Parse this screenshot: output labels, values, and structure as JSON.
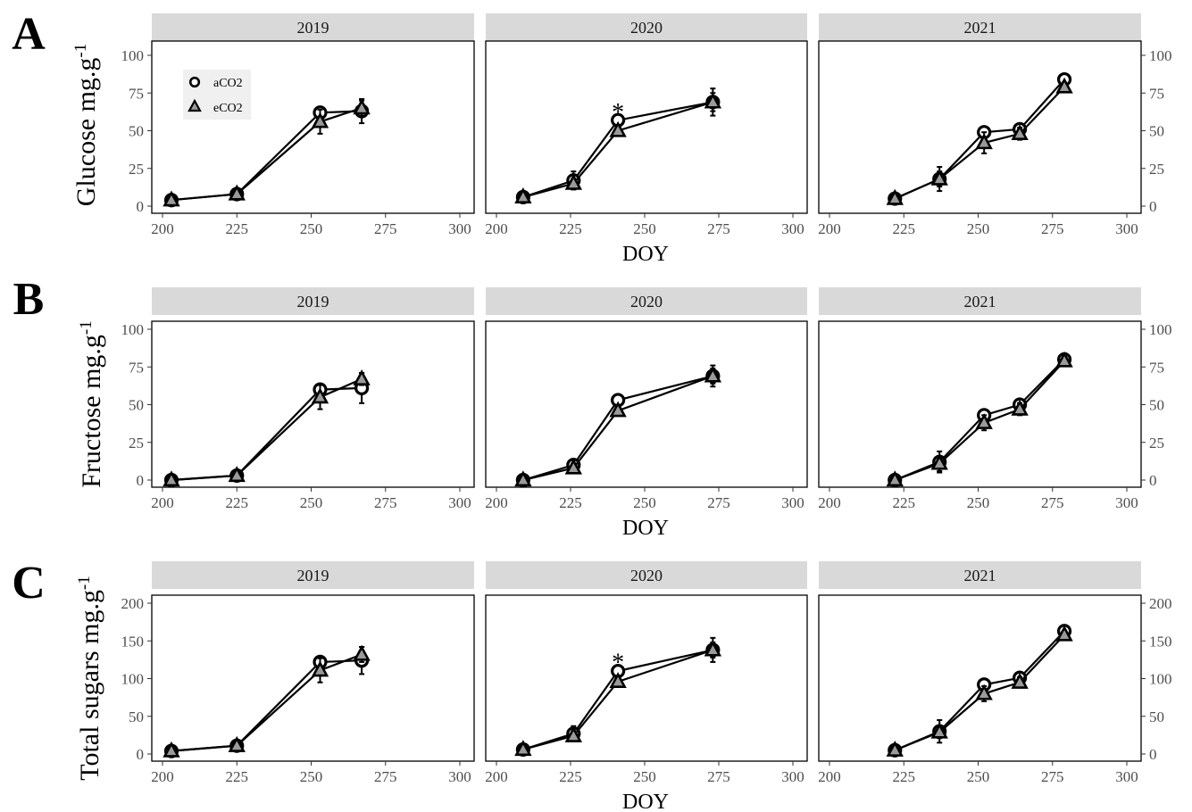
{
  "figure": {
    "x_axis_title": "DOY",
    "legend": {
      "entries": [
        "aCO2",
        "eCO2"
      ]
    },
    "facet_labels": [
      "2019",
      "2020",
      "2021"
    ]
  },
  "chart_data": [
    {
      "type": "line",
      "panel_letter": "A",
      "ylabel": "Glucose mg.g-1",
      "ylabel_main": "Glucose mg.g",
      "ylabel_sup": "-1",
      "y_ticks": [
        0,
        25,
        50,
        75,
        100
      ],
      "ylim": [
        -3,
        104
      ],
      "xlabel": "DOY",
      "x_ticks": [
        200,
        225,
        250,
        275,
        300
      ],
      "xlim": [
        197,
        305
      ],
      "facets": [
        {
          "facet": "2019",
          "series": [
            {
              "name": "aCO2",
              "x": [
                203,
                225,
                253,
                267
              ],
              "y": [
                4,
                8,
                62,
                63
              ],
              "err": [
                2,
                2,
                3,
                8
              ]
            },
            {
              "name": "eCO2",
              "x": [
                203,
                225,
                253,
                267
              ],
              "y": [
                4,
                8,
                56,
                65
              ],
              "err": [
                2,
                2,
                8,
                5
              ]
            }
          ],
          "annotations": []
        },
        {
          "facet": "2020",
          "series": [
            {
              "name": "aCO2",
              "x": [
                209,
                226,
                241,
                273
              ],
              "y": [
                6,
                17,
                57,
                69
              ],
              "err": [
                2,
                6,
                3,
                9
              ]
            },
            {
              "name": "eCO2",
              "x": [
                209,
                226,
                241,
                273
              ],
              "y": [
                6,
                15,
                50,
                69
              ],
              "err": [
                2,
                3,
                3,
                6
              ]
            }
          ],
          "annotations": [
            {
              "text": "*",
              "x": 241,
              "y": 65
            }
          ]
        },
        {
          "facet": "2021",
          "series": [
            {
              "name": "aCO2",
              "x": [
                222,
                237,
                252,
                264,
                279
              ],
              "y": [
                5,
                18,
                49,
                51,
                84
              ],
              "err": [
                2,
                8,
                3,
                3,
                3
              ]
            },
            {
              "name": "eCO2",
              "x": [
                222,
                237,
                252,
                264,
                279
              ],
              "y": [
                5,
                18,
                42,
                48,
                79
              ],
              "err": [
                2,
                5,
                7,
                4,
                3
              ]
            }
          ],
          "annotations": []
        }
      ]
    },
    {
      "type": "line",
      "panel_letter": "B",
      "ylabel": "Fructose mg.g-1",
      "ylabel_main": "Fructose mg.g",
      "ylabel_sup": "-1",
      "y_ticks": [
        0,
        25,
        50,
        75,
        100
      ],
      "ylim": [
        -3,
        104
      ],
      "xlabel": "DOY",
      "x_ticks": [
        200,
        225,
        250,
        275,
        300
      ],
      "xlim": [
        197,
        305
      ],
      "facets": [
        {
          "facet": "2019",
          "series": [
            {
              "name": "aCO2",
              "x": [
                203,
                225,
                253,
                267
              ],
              "y": [
                0,
                3,
                60,
                61
              ],
              "err": [
                2,
                2,
                3,
                10
              ]
            },
            {
              "name": "eCO2",
              "x": [
                203,
                225,
                253,
                267
              ],
              "y": [
                0,
                3,
                55,
                67
              ],
              "err": [
                2,
                2,
                8,
                4
              ]
            }
          ],
          "annotations": []
        },
        {
          "facet": "2020",
          "series": [
            {
              "name": "aCO2",
              "x": [
                209,
                226,
                241,
                273
              ],
              "y": [
                0,
                10,
                53,
                69
              ],
              "err": [
                2,
                3,
                3,
                7
              ]
            },
            {
              "name": "eCO2",
              "x": [
                209,
                226,
                241,
                273
              ],
              "y": [
                0,
                8,
                46,
                69
              ],
              "err": [
                2,
                3,
                3,
                5
              ]
            }
          ],
          "annotations": []
        },
        {
          "facet": "2021",
          "series": [
            {
              "name": "aCO2",
              "x": [
                222,
                237,
                252,
                264,
                279
              ],
              "y": [
                0,
                12,
                43,
                50,
                80
              ],
              "err": [
                2,
                7,
                3,
                3,
                4
              ]
            },
            {
              "name": "eCO2",
              "x": [
                222,
                237,
                252,
                264,
                279
              ],
              "y": [
                0,
                11,
                38,
                47,
                79
              ],
              "err": [
                2,
                5,
                5,
                4,
                3
              ]
            }
          ],
          "annotations": []
        }
      ]
    },
    {
      "type": "line",
      "panel_letter": "C",
      "ylabel": "Total sugars mg.g-1",
      "ylabel_main": "Total sugars mg.g",
      "ylabel_sup": "-1",
      "y_ticks": [
        0,
        50,
        100,
        150,
        200
      ],
      "ylim": [
        -7,
        208
      ],
      "xlabel": "DOY",
      "x_ticks": [
        200,
        225,
        250,
        275,
        300
      ],
      "xlim": [
        197,
        305
      ],
      "facets": [
        {
          "facet": "2019",
          "series": [
            {
              "name": "aCO2",
              "x": [
                203,
                225,
                253,
                267
              ],
              "y": [
                4,
                11,
                122,
                124
              ],
              "err": [
                3,
                3,
                6,
                18
              ]
            },
            {
              "name": "eCO2",
              "x": [
                203,
                225,
                253,
                267
              ],
              "y": [
                4,
                11,
                111,
                132
              ],
              "err": [
                3,
                3,
                16,
                10
              ]
            }
          ],
          "annotations": []
        },
        {
          "facet": "2020",
          "series": [
            {
              "name": "aCO2",
              "x": [
                209,
                226,
                241,
                273
              ],
              "y": [
                6,
                27,
                110,
                138
              ],
              "err": [
                3,
                10,
                5,
                16
              ]
            },
            {
              "name": "eCO2",
              "x": [
                209,
                226,
                241,
                273
              ],
              "y": [
                6,
                24,
                96,
                138
              ],
              "err": [
                3,
                5,
                5,
                10
              ]
            }
          ],
          "annotations": [
            {
              "text": "*",
              "x": 241,
              "y": 127
            }
          ]
        },
        {
          "facet": "2021",
          "series": [
            {
              "name": "aCO2",
              "x": [
                222,
                237,
                252,
                264,
                279
              ],
              "y": [
                5,
                30,
                92,
                101,
                163
              ],
              "err": [
                3,
                15,
                5,
                5,
                6
              ]
            },
            {
              "name": "eCO2",
              "x": [
                222,
                237,
                252,
                264,
                279
              ],
              "y": [
                5,
                29,
                80,
                95,
                158
              ],
              "err": [
                3,
                8,
                10,
                7,
                5
              ]
            }
          ],
          "annotations": []
        }
      ]
    }
  ]
}
